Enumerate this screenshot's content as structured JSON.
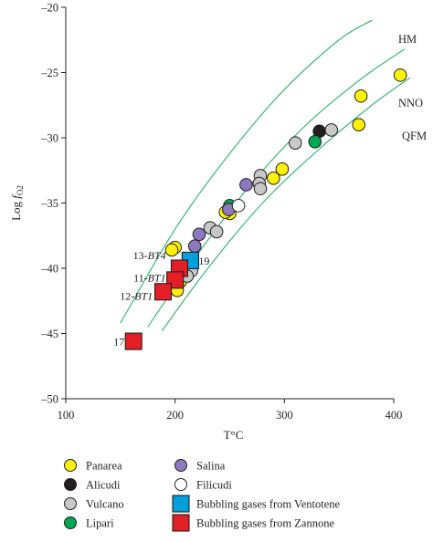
{
  "chart_data": {
    "type": "scatter",
    "xlabel": "T°C",
    "ylabel": "Log fO2",
    "xlim": [
      100,
      400
    ],
    "ylim": [
      -50,
      -20
    ],
    "x_ticks": [
      "100",
      "200",
      "300",
      "400"
    ],
    "y_ticks": [
      "–20",
      "–25",
      "–30",
      "–35",
      "–40",
      "–45",
      "–50"
    ],
    "buffers": [
      {
        "name": "HM",
        "points": [
          [
            150,
            -44.2
          ],
          [
            200,
            -37.0
          ],
          [
            250,
            -31.2
          ],
          [
            300,
            -26.3
          ],
          [
            350,
            -22.5
          ],
          [
            380,
            -21.0
          ]
        ]
      },
      {
        "name": "NNO",
        "points": [
          [
            175,
            -44.5
          ],
          [
            220,
            -39.0
          ],
          [
            270,
            -33.5
          ],
          [
            320,
            -29.0
          ],
          [
            370,
            -25.5
          ],
          [
            410,
            -23.2
          ]
        ]
      },
      {
        "name": "QFM",
        "points": [
          [
            188,
            -44.8
          ],
          [
            230,
            -40.0
          ],
          [
            280,
            -35.0
          ],
          [
            330,
            -31.0
          ],
          [
            380,
            -27.5
          ],
          [
            415,
            -25.4
          ]
        ]
      }
    ],
    "series": [
      {
        "name": "Panarea",
        "marker": "circle",
        "color": "#fff200",
        "points": [
          [
            406,
            -25.2
          ],
          [
            370,
            -26.8
          ],
          [
            368,
            -29.0
          ],
          [
            298,
            -32.4
          ],
          [
            290,
            -33.1
          ],
          [
            250,
            -35.8
          ],
          [
            246,
            -35.7
          ],
          [
            200,
            -38.4
          ],
          [
            197,
            -38.6
          ],
          [
            205,
            -41.0
          ],
          [
            202,
            -41.7
          ]
        ]
      },
      {
        "name": "Alicudi",
        "marker": "circle",
        "color": "#231f20",
        "points": [
          [
            332,
            -29.5
          ]
        ]
      },
      {
        "name": "Vulcano",
        "marker": "circle",
        "color": "#c8c8c8",
        "points": [
          [
            343,
            -29.4
          ],
          [
            310,
            -30.4
          ],
          [
            278,
            -32.9
          ],
          [
            277,
            -33.5
          ],
          [
            278,
            -33.9
          ],
          [
            232,
            -36.9
          ],
          [
            238,
            -37.2
          ],
          [
            215,
            -40.2
          ],
          [
            211,
            -40.6
          ]
        ]
      },
      {
        "name": "Lipari",
        "marker": "circle",
        "color": "#00a651",
        "points": [
          [
            328,
            -30.3
          ],
          [
            250,
            -35.2
          ]
        ]
      },
      {
        "name": "Salina",
        "marker": "circle",
        "color": "#8d79c0",
        "points": [
          [
            265,
            -33.6
          ],
          [
            249,
            -35.5
          ],
          [
            222,
            -37.4
          ],
          [
            218,
            -38.3
          ]
        ]
      },
      {
        "name": "Filicudi",
        "marker": "circle",
        "color": "#ffffff",
        "points": [
          [
            258,
            -35.2
          ]
        ]
      },
      {
        "name": "Bubbling gases from Ventotene",
        "marker": "square",
        "color": "#00a0dc",
        "points": [
          [
            214,
            -39.4
          ]
        ]
      },
      {
        "name": "Bubbling gases from Zannone",
        "marker": "square",
        "color": "#e31e24",
        "points": [
          [
            204,
            -40.0
          ],
          [
            200,
            -40.9
          ],
          [
            189,
            -41.8
          ],
          [
            162,
            -45.6
          ]
        ]
      }
    ],
    "annotations": [
      {
        "text": "13-",
        "italic": "BT4",
        "x": 200,
        "y": -39.0
      },
      {
        "text": "11-",
        "italic": "BT1",
        "x": 200,
        "y": -40.7
      },
      {
        "text": "12-",
        "italic": "BT1",
        "x": 188,
        "y": -42.1
      },
      {
        "text": "19",
        "x": 214,
        "y": -39.4
      },
      {
        "text": "17",
        "x": 162,
        "y": -45.6
      }
    ],
    "legend": {
      "placement": "bottom",
      "columns": 2
    },
    "grid": false
  }
}
